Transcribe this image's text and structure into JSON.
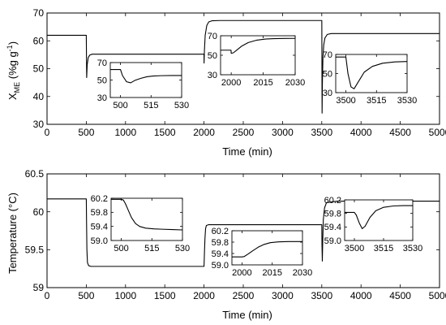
{
  "chart_data": [
    {
      "type": "line",
      "ylabel_main": "X",
      "ylabel_sub": "ME",
      "ylabel_tail": " (%g g",
      "ylabel_sup": "-1",
      "ylabel_end": ")",
      "xlabel": "Time (min)",
      "xlim": [
        0,
        5000
      ],
      "ylim": [
        30,
        70
      ],
      "xticks": [
        0,
        500,
        1000,
        1500,
        2000,
        2500,
        3000,
        3500,
        4000,
        4500,
        5000
      ],
      "yticks": [
        30,
        40,
        50,
        60,
        70
      ],
      "series": [
        {
          "x": [
            0,
            500,
            505,
            512,
            525,
            545,
            575,
            620,
            700,
            1000,
            2000,
            2000.5,
            2005,
            2015,
            2035,
            2060,
            2100,
            2200,
            2500,
            3500,
            3500.5,
            3504,
            3508,
            3515,
            3525,
            3540,
            3570,
            3620,
            3700,
            5000
          ],
          "y": [
            62,
            62,
            46.8,
            51.5,
            54.0,
            54.9,
            55.2,
            55.2,
            55.2,
            55.2,
            55.2,
            52.0,
            56.5,
            62.0,
            65.5,
            66.8,
            67.2,
            67.3,
            67.3,
            67.3,
            67.3,
            34.0,
            45.0,
            54.0,
            58.5,
            61.0,
            62.3,
            62.6,
            62.6,
            62.6
          ]
        }
      ],
      "insets": [
        {
          "xlim": [
            495,
            530
          ],
          "ylim": [
            30,
            70
          ],
          "xticks": [
            500,
            515,
            530
          ],
          "yticks": [
            30,
            50,
            70
          ],
          "x": [
            495,
            499.5,
            500,
            501,
            503,
            505,
            507,
            510,
            513,
            516,
            520,
            525,
            530
          ],
          "y": [
            62,
            62,
            62,
            55,
            48,
            46.8,
            49.5,
            52.0,
            53.8,
            54.6,
            55.0,
            55.2,
            55.2
          ]
        },
        {
          "xlim": [
            1995,
            2030
          ],
          "ylim": [
            30,
            70
          ],
          "xticks": [
            2000,
            2015,
            2030
          ],
          "yticks": [
            30,
            50,
            70
          ],
          "x": [
            1995,
            1999.9,
            2000,
            2001,
            2003,
            2005,
            2008,
            2012,
            2016,
            2020,
            2025,
            2030
          ],
          "y": [
            55.2,
            55.2,
            52.0,
            52.5,
            56.0,
            59.5,
            63.0,
            65.5,
            66.6,
            67.0,
            67.2,
            67.3
          ]
        },
        {
          "xlim": [
            3495,
            3530
          ],
          "ylim": [
            30,
            70
          ],
          "xticks": [
            3500,
            3515,
            3530
          ],
          "yticks": [
            30,
            50,
            70
          ],
          "x": [
            3495,
            3499.9,
            3500,
            3501,
            3502.5,
            3504,
            3506,
            3509,
            3513,
            3518,
            3524,
            3530
          ],
          "y": [
            67.3,
            67.3,
            67.0,
            50.0,
            36.0,
            34.0,
            41.0,
            51.5,
            57.5,
            60.8,
            62.2,
            62.6
          ]
        }
      ]
    },
    {
      "type": "line",
      "ylabel": "Temperature (°C)",
      "xlabel": "Time (min)",
      "xlim": [
        0,
        5000
      ],
      "ylim": [
        59,
        60.5
      ],
      "xticks": [
        0,
        500,
        1000,
        1500,
        2000,
        2500,
        3000,
        3500,
        4000,
        4500,
        5000
      ],
      "yticks": [
        59,
        59.5,
        60,
        60.5
      ],
      "ytick_labels": [
        "59",
        "59.5",
        "60",
        "60.5"
      ],
      "series": [
        {
          "x": [
            0,
            500,
            500.5,
            503,
            508,
            515,
            530,
            560,
            700,
            1000,
            2000,
            2000.5,
            2005,
            2012,
            2020,
            2030,
            2060,
            2200,
            3500,
            3500.5,
            3503,
            3507,
            3512,
            3520,
            3535,
            3560,
            3700,
            5000
          ],
          "y": [
            60.17,
            60.17,
            60.15,
            59.9,
            59.5,
            59.33,
            59.29,
            59.28,
            59.28,
            59.28,
            59.28,
            59.3,
            59.45,
            59.65,
            59.78,
            59.82,
            59.83,
            59.83,
            59.83,
            59.82,
            59.55,
            59.35,
            59.6,
            59.9,
            60.05,
            60.12,
            60.14,
            60.14
          ]
        }
      ],
      "insets": [
        {
          "xlim": [
            495,
            530
          ],
          "ylim": [
            59.0,
            60.2
          ],
          "xticks": [
            500,
            515,
            530
          ],
          "yticks": [
            59.0,
            59.4,
            59.8,
            60.2
          ],
          "ytick_labels": [
            "59.0",
            "59.4",
            "59.8",
            "60.2"
          ],
          "x": [
            495,
            500,
            501,
            502,
            503.5,
            505,
            507,
            509,
            512,
            516,
            520,
            525,
            530
          ],
          "y": [
            60.17,
            60.17,
            60.15,
            60.05,
            59.85,
            59.65,
            59.48,
            59.4,
            59.35,
            59.33,
            59.32,
            59.31,
            59.3
          ]
        },
        {
          "xlim": [
            1995,
            2030
          ],
          "ylim": [
            59.0,
            60.2
          ],
          "xticks": [
            2000,
            2015,
            2030
          ],
          "yticks": [
            59.0,
            59.4,
            59.8,
            60.2
          ],
          "ytick_labels": [
            "59.0",
            "59.4",
            "59.8",
            "60.2"
          ],
          "x": [
            1995,
            2000,
            2001,
            2003,
            2005,
            2008,
            2011,
            2014,
            2018,
            2023,
            2030
          ],
          "y": [
            59.28,
            59.28,
            59.29,
            59.38,
            59.48,
            59.62,
            59.72,
            59.78,
            59.81,
            59.82,
            59.82
          ]
        },
        {
          "xlim": [
            3495,
            3530
          ],
          "ylim": [
            59.0,
            60.2
          ],
          "xticks": [
            3500,
            3515,
            3530
          ],
          "yticks": [
            59.0,
            59.4,
            59.8,
            60.2
          ],
          "ytick_labels": [
            "59.0",
            "59.4",
            "59.8",
            "60.2"
          ],
          "x": [
            3495,
            3500,
            3501,
            3502.5,
            3504,
            3505.5,
            3508,
            3511,
            3515,
            3520,
            3525,
            3530
          ],
          "y": [
            59.83,
            59.83,
            59.75,
            59.52,
            59.35,
            59.42,
            59.68,
            59.88,
            59.98,
            60.02,
            60.03,
            60.03
          ]
        }
      ]
    }
  ]
}
